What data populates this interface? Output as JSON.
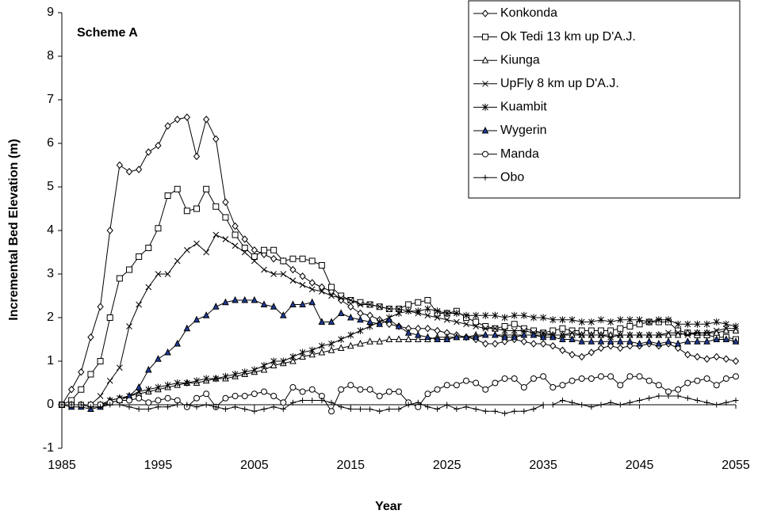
{
  "chart_data": {
    "type": "line",
    "annotation": "Scheme A",
    "x_label": "Year",
    "y_label": "Incremental Bed Elevation (m)",
    "xlim": [
      1985,
      2055
    ],
    "xticks": [
      1985,
      1995,
      2005,
      2015,
      2025,
      2035,
      2045,
      2055
    ],
    "ylim": [
      -1,
      9
    ],
    "yticks": [
      -1,
      0,
      1,
      2,
      3,
      4,
      5,
      6,
      7,
      8,
      9
    ],
    "legend": "top-right",
    "x": [
      1985,
      1986,
      1987,
      1988,
      1989,
      1990,
      1991,
      1992,
      1993,
      1994,
      1995,
      1996,
      1997,
      1998,
      1999,
      2000,
      2001,
      2002,
      2003,
      2004,
      2005,
      2006,
      2007,
      2008,
      2009,
      2010,
      2011,
      2012,
      2013,
      2014,
      2015,
      2016,
      2017,
      2018,
      2019,
      2020,
      2021,
      2022,
      2023,
      2024,
      2025,
      2026,
      2027,
      2028,
      2029,
      2030,
      2031,
      2032,
      2033,
      2034,
      2035,
      2036,
      2037,
      2038,
      2039,
      2040,
      2041,
      2042,
      2043,
      2044,
      2045,
      2046,
      2047,
      2048,
      2049,
      2050,
      2051,
      2052,
      2053,
      2054,
      2055
    ],
    "series": [
      {
        "name": "Konkonda",
        "color": "#000000",
        "marker": "diamond",
        "marker_fill": "#ffffff",
        "values": [
          0,
          0.35,
          0.75,
          1.55,
          2.25,
          4.0,
          5.5,
          5.35,
          5.4,
          5.8,
          5.95,
          6.4,
          6.55,
          6.6,
          5.7,
          6.55,
          6.1,
          4.65,
          4.1,
          3.8,
          3.55,
          3.45,
          3.35,
          3.3,
          3.1,
          2.95,
          2.8,
          2.7,
          2.6,
          2.4,
          2.25,
          2.1,
          2.05,
          1.95,
          1.85,
          1.8,
          1.75,
          1.75,
          1.75,
          1.7,
          1.65,
          1.6,
          1.55,
          1.5,
          1.4,
          1.4,
          1.45,
          1.5,
          1.45,
          1.4,
          1.4,
          1.35,
          1.25,
          1.15,
          1.1,
          1.2,
          1.3,
          1.35,
          1.3,
          1.35,
          1.35,
          1.4,
          1.35,
          1.4,
          1.3,
          1.15,
          1.1,
          1.05,
          1.1,
          1.05,
          1.0
        ]
      },
      {
        "name": "Ok Tedi 13 km up D'A.J.",
        "color": "#000000",
        "marker": "square",
        "marker_fill": "#ffffff",
        "values": [
          0,
          0.1,
          0.35,
          0.7,
          1.0,
          2.0,
          2.9,
          3.1,
          3.4,
          3.6,
          4.05,
          4.8,
          4.95,
          4.45,
          4.5,
          4.95,
          4.55,
          4.3,
          3.9,
          3.6,
          3.4,
          3.55,
          3.55,
          3.3,
          3.35,
          3.35,
          3.3,
          3.2,
          2.7,
          2.5,
          2.4,
          2.35,
          2.3,
          2.25,
          2.2,
          2.2,
          2.3,
          2.35,
          2.4,
          2.1,
          2.1,
          2.15,
          2.0,
          1.9,
          1.8,
          1.75,
          1.8,
          1.85,
          1.75,
          1.7,
          1.65,
          1.7,
          1.75,
          1.7,
          1.7,
          1.7,
          1.7,
          1.7,
          1.75,
          1.8,
          1.85,
          1.9,
          1.9,
          1.9,
          1.7,
          1.65,
          1.6,
          1.6,
          1.55,
          1.55,
          1.5
        ]
      },
      {
        "name": "Kiunga",
        "color": "#000000",
        "marker": "triangle",
        "marker_fill": "#ffffff",
        "values": [
          0,
          0,
          0,
          0,
          0,
          0.1,
          0.15,
          0.2,
          0.25,
          0.3,
          0.35,
          0.4,
          0.45,
          0.5,
          0.5,
          0.55,
          0.6,
          0.6,
          0.65,
          0.7,
          0.75,
          0.8,
          0.9,
          0.95,
          1.0,
          1.1,
          1.15,
          1.2,
          1.25,
          1.3,
          1.35,
          1.4,
          1.45,
          1.45,
          1.5,
          1.5,
          1.5,
          1.5,
          1.5,
          1.55,
          1.55,
          1.55,
          1.55,
          1.6,
          1.6,
          1.6,
          1.6,
          1.6,
          1.6,
          1.6,
          1.6,
          1.6,
          1.6,
          1.6,
          1.6,
          1.6,
          1.6,
          1.6,
          1.6,
          1.6,
          1.6,
          1.6,
          1.6,
          1.6,
          1.6,
          1.65,
          1.65,
          1.65,
          1.65,
          1.7,
          1.7
        ]
      },
      {
        "name": "UpFly 8 km up D'A.J.",
        "color": "#000000",
        "marker": "x",
        "marker_fill": "#ffffff",
        "values": [
          0,
          0,
          0,
          0,
          0.2,
          0.55,
          0.85,
          1.8,
          2.3,
          2.7,
          3.0,
          3.0,
          3.3,
          3.55,
          3.7,
          3.5,
          3.9,
          3.8,
          3.65,
          3.5,
          3.3,
          3.1,
          3.0,
          3.0,
          2.85,
          2.75,
          2.65,
          2.6,
          2.5,
          2.45,
          2.4,
          2.3,
          2.3,
          2.25,
          2.2,
          2.2,
          2.15,
          2.1,
          2.05,
          2.0,
          1.95,
          1.9,
          1.85,
          1.8,
          1.75,
          1.75,
          1.7,
          1.7,
          1.7,
          1.65,
          1.65,
          1.6,
          1.6,
          1.65,
          1.6,
          1.6,
          1.6,
          1.55,
          1.6,
          1.6,
          1.6,
          1.6,
          1.6,
          1.65,
          1.65,
          1.6,
          1.65,
          1.65,
          1.7,
          1.75,
          1.75
        ]
      },
      {
        "name": "Kuambit",
        "color": "#000000",
        "marker": "asterisk",
        "marker_fill": "#ffffff",
        "values": [
          0,
          0,
          0,
          0,
          0,
          0.1,
          0.15,
          0.2,
          0.3,
          0.35,
          0.4,
          0.45,
          0.5,
          0.5,
          0.55,
          0.6,
          0.6,
          0.65,
          0.7,
          0.75,
          0.8,
          0.9,
          1.0,
          1.0,
          1.1,
          1.2,
          1.25,
          1.35,
          1.4,
          1.5,
          1.6,
          1.7,
          1.8,
          1.9,
          2.0,
          2.1,
          2.15,
          2.15,
          2.2,
          2.15,
          2.1,
          2.1,
          2.05,
          2.05,
          2.05,
          2.05,
          2.0,
          2.05,
          2.05,
          2.0,
          2.0,
          1.95,
          1.95,
          1.95,
          1.9,
          1.9,
          1.95,
          1.9,
          1.95,
          1.95,
          1.95,
          1.9,
          1.95,
          1.95,
          1.85,
          1.85,
          1.85,
          1.85,
          1.9,
          1.85,
          1.8
        ]
      },
      {
        "name": "Wygerin",
        "color": "#000000",
        "marker": "triangle",
        "marker_fill": "#1f3b9a",
        "values": [
          0,
          -0.05,
          -0.05,
          -0.1,
          -0.05,
          0.05,
          0.1,
          0.2,
          0.4,
          0.8,
          1.05,
          1.2,
          1.4,
          1.75,
          1.95,
          2.05,
          2.25,
          2.35,
          2.4,
          2.4,
          2.4,
          2.3,
          2.25,
          2.05,
          2.3,
          2.3,
          2.35,
          1.9,
          1.9,
          2.1,
          2.0,
          1.95,
          1.9,
          1.85,
          1.95,
          1.8,
          1.65,
          1.6,
          1.55,
          1.5,
          1.5,
          1.55,
          1.55,
          1.55,
          1.6,
          1.6,
          1.55,
          1.55,
          1.6,
          1.6,
          1.55,
          1.55,
          1.5,
          1.5,
          1.45,
          1.45,
          1.45,
          1.45,
          1.45,
          1.45,
          1.4,
          1.45,
          1.4,
          1.45,
          1.4,
          1.45,
          1.45,
          1.45,
          1.5,
          1.5,
          1.45
        ]
      },
      {
        "name": "Manda",
        "color": "#000000",
        "marker": "circle",
        "marker_fill": "#ffffff",
        "values": [
          0,
          0,
          0,
          0,
          0,
          0.05,
          0.1,
          0.1,
          0.15,
          0.05,
          0.1,
          0.15,
          0.1,
          -0.05,
          0.15,
          0.25,
          -0.05,
          0.15,
          0.2,
          0.2,
          0.25,
          0.3,
          0.2,
          0.05,
          0.4,
          0.3,
          0.35,
          0.2,
          -0.15,
          0.35,
          0.45,
          0.35,
          0.35,
          0.2,
          0.3,
          0.3,
          0.05,
          -0.05,
          0.25,
          0.35,
          0.45,
          0.45,
          0.55,
          0.5,
          0.35,
          0.5,
          0.6,
          0.6,
          0.4,
          0.6,
          0.65,
          0.4,
          0.45,
          0.55,
          0.6,
          0.6,
          0.65,
          0.65,
          0.45,
          0.65,
          0.65,
          0.55,
          0.45,
          0.3,
          0.35,
          0.5,
          0.55,
          0.6,
          0.45,
          0.6,
          0.65
        ]
      },
      {
        "name": "Obo",
        "color": "#000000",
        "marker": "plus",
        "marker_fill": "#ffffff",
        "values": [
          0,
          0,
          0,
          -0.05,
          -0.05,
          0,
          0,
          -0.05,
          -0.1,
          -0.1,
          -0.05,
          -0.05,
          0,
          0,
          -0.05,
          0,
          -0.05,
          -0.1,
          -0.05,
          -0.1,
          -0.15,
          -0.1,
          -0.05,
          -0.1,
          0.05,
          0.1,
          0.1,
          0.1,
          0.05,
          -0.05,
          -0.1,
          -0.1,
          -0.1,
          -0.15,
          -0.1,
          -0.1,
          0,
          0.05,
          -0.05,
          -0.1,
          0,
          -0.1,
          -0.05,
          -0.1,
          -0.15,
          -0.15,
          -0.2,
          -0.15,
          -0.15,
          -0.1,
          0,
          0,
          0.1,
          0.05,
          0,
          -0.05,
          0,
          0.05,
          0,
          0.05,
          0.1,
          0.15,
          0.2,
          0.2,
          0.2,
          0.15,
          0.1,
          0.05,
          0,
          0.05,
          0.1
        ]
      }
    ]
  }
}
